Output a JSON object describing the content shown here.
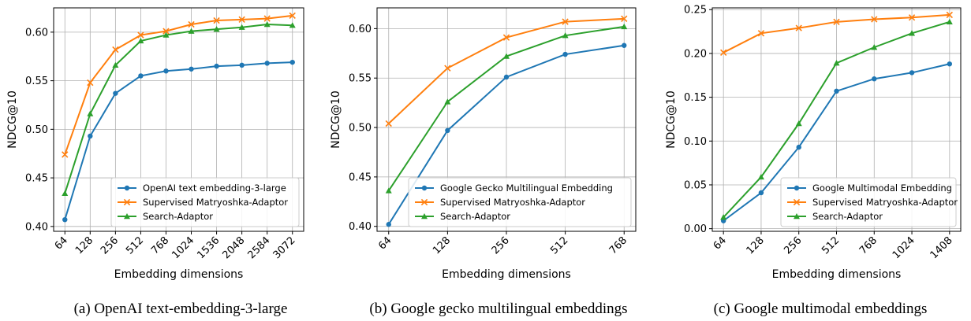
{
  "chart_data": [
    {
      "type": "line",
      "caption": "(a) OpenAI text-embedding-3-large",
      "xlabel": "Embedding dimensions",
      "ylabel": "NDCG@10",
      "categories": [
        "64",
        "128",
        "256",
        "512",
        "768",
        "1024",
        "1536",
        "2048",
        "2584",
        "3072"
      ],
      "ylim": [
        0.395,
        0.625
      ],
      "yticks": [
        "0.40",
        "0.45",
        "0.50",
        "0.55",
        "0.60"
      ],
      "grid": true,
      "legend_position": "lower-right",
      "series": [
        {
          "name": "OpenAI text embedding-3-large",
          "color": "#1f77b4",
          "marker": "circle",
          "values": [
            0.407,
            0.493,
            0.537,
            0.555,
            0.56,
            0.562,
            0.565,
            0.566,
            0.568,
            0.569
          ]
        },
        {
          "name": "Supervised Matryoshka-Adaptor",
          "color": "#ff7f0e",
          "marker": "x",
          "values": [
            0.474,
            0.548,
            0.582,
            0.597,
            0.601,
            0.608,
            0.612,
            0.613,
            0.614,
            0.617
          ]
        },
        {
          "name": "Search-Adaptor",
          "color": "#2ca02c",
          "marker": "triangle",
          "values": [
            0.434,
            0.516,
            0.566,
            0.591,
            0.597,
            0.601,
            0.603,
            0.605,
            0.608,
            0.607
          ]
        }
      ]
    },
    {
      "type": "line",
      "caption": "(b) Google gecko multilingual embeddings",
      "xlabel": "Embedding dimensions",
      "ylabel": "NDCG@10",
      "categories": [
        "64",
        "128",
        "256",
        "512",
        "768"
      ],
      "ylim": [
        0.395,
        0.621
      ],
      "yticks": [
        "0.40",
        "0.45",
        "0.50",
        "0.55",
        "0.60"
      ],
      "grid": true,
      "legend_position": "lower-right",
      "series": [
        {
          "name": "Google Gecko Multilingual Embedding",
          "color": "#1f77b4",
          "marker": "circle",
          "values": [
            0.402,
            0.497,
            0.551,
            0.574,
            0.583
          ]
        },
        {
          "name": "Supervised Matryoshka-Adaptor",
          "color": "#ff7f0e",
          "marker": "x",
          "values": [
            0.504,
            0.56,
            0.591,
            0.607,
            0.61
          ]
        },
        {
          "name": "Search-Adaptor",
          "color": "#2ca02c",
          "marker": "triangle",
          "values": [
            0.436,
            0.526,
            0.572,
            0.593,
            0.602
          ]
        }
      ]
    },
    {
      "type": "line",
      "caption": "(c) Google multimodal embeddings",
      "xlabel": "Embedding dimensions",
      "ylabel": "NDCG@10",
      "categories": [
        "64",
        "128",
        "256",
        "512",
        "768",
        "1024",
        "1408"
      ],
      "ylim": [
        -0.003,
        0.252
      ],
      "yticks": [
        "0.00",
        "0.05",
        "0.10",
        "0.15",
        "0.20",
        "0.25"
      ],
      "grid": true,
      "legend_position": "lower-right",
      "series": [
        {
          "name": "Google Multimodal Embedding",
          "color": "#1f77b4",
          "marker": "circle",
          "values": [
            0.009,
            0.041,
            0.093,
            0.157,
            0.171,
            0.178,
            0.188
          ]
        },
        {
          "name": "Supervised Matryoshka-Adaptor",
          "color": "#ff7f0e",
          "marker": "x",
          "values": [
            0.201,
            0.223,
            0.229,
            0.236,
            0.239,
            0.241,
            0.244
          ]
        },
        {
          "name": "Search-Adaptor",
          "color": "#2ca02c",
          "marker": "triangle",
          "values": [
            0.013,
            0.059,
            0.12,
            0.189,
            0.207,
            0.223,
            0.236
          ]
        }
      ]
    }
  ]
}
